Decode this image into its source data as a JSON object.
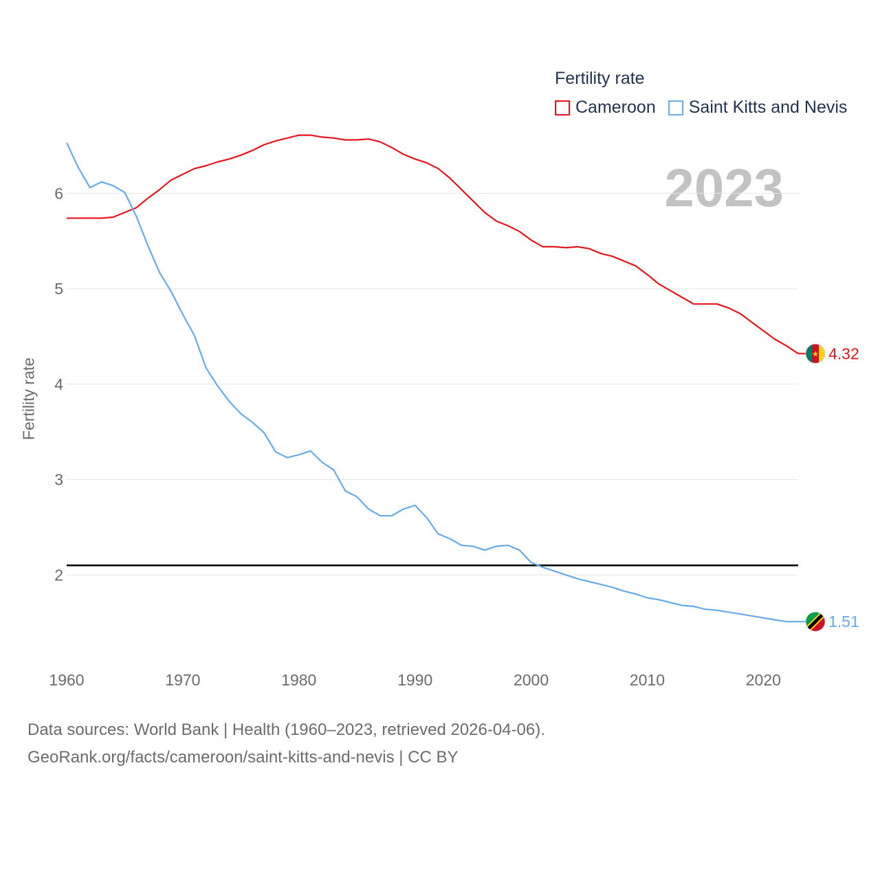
{
  "legend": {
    "title": "Fertility rate",
    "items": [
      {
        "label": "Cameroon",
        "color": "#e8141c"
      },
      {
        "label": "Saint Kitts and Nevis",
        "color": "#66aae8"
      }
    ]
  },
  "year_label": "2023",
  "footer": {
    "line1": "Data sources: World Bank | Health (1960–2023, retrieved 2026-04-06).",
    "line2": "GeoRank.org/facts/cameroon/saint-kitts-and-nevis | CC BY"
  },
  "chart_data": {
    "type": "line",
    "title": "Fertility rate",
    "xlabel": "",
    "ylabel": "Fertility rate",
    "xlim": [
      1960,
      2023
    ],
    "ylim": [
      1.0,
      6.6
    ],
    "x_ticks": [
      1960,
      1970,
      1980,
      1990,
      2000,
      2010,
      2020
    ],
    "y_ticks": [
      2,
      3,
      4,
      5,
      6
    ],
    "grid": true,
    "legend_position": "top-right",
    "reference_line": {
      "y": 2.1,
      "color": "#000000"
    },
    "x": [
      1960,
      1961,
      1962,
      1963,
      1964,
      1965,
      1966,
      1967,
      1968,
      1969,
      1970,
      1971,
      1972,
      1973,
      1974,
      1975,
      1976,
      1977,
      1978,
      1979,
      1980,
      1981,
      1982,
      1983,
      1984,
      1985,
      1986,
      1987,
      1988,
      1989,
      1990,
      1991,
      1992,
      1993,
      1994,
      1995,
      1996,
      1997,
      1998,
      1999,
      2000,
      2001,
      2002,
      2003,
      2004,
      2005,
      2006,
      2007,
      2008,
      2009,
      2010,
      2011,
      2012,
      2013,
      2014,
      2015,
      2016,
      2017,
      2018,
      2019,
      2020,
      2021,
      2022,
      2023
    ],
    "series": [
      {
        "name": "Cameroon",
        "color": "#e8141c",
        "end_label": "4.32",
        "values": [
          5.74,
          5.74,
          5.74,
          5.74,
          5.75,
          5.8,
          5.85,
          5.95,
          6.04,
          6.14,
          6.2,
          6.26,
          6.29,
          6.33,
          6.36,
          6.4,
          6.45,
          6.51,
          6.55,
          6.58,
          6.61,
          6.61,
          6.59,
          6.58,
          6.56,
          6.56,
          6.57,
          6.54,
          6.48,
          6.41,
          6.36,
          6.32,
          6.26,
          6.16,
          6.04,
          5.92,
          5.8,
          5.71,
          5.66,
          5.6,
          5.51,
          5.44,
          5.44,
          5.43,
          5.44,
          5.42,
          5.37,
          5.34,
          5.29,
          5.24,
          5.15,
          5.05,
          4.98,
          4.91,
          4.84,
          4.84,
          4.84,
          4.8,
          4.74,
          4.65,
          4.56,
          4.47,
          4.4,
          4.32
        ]
      },
      {
        "name": "Saint Kitts and Nevis",
        "color": "#66aae8",
        "end_label": "1.51",
        "values": [
          6.53,
          6.27,
          6.06,
          6.12,
          6.08,
          6.01,
          5.76,
          5.45,
          5.17,
          4.97,
          4.73,
          4.51,
          4.17,
          3.98,
          3.82,
          3.69,
          3.6,
          3.49,
          3.29,
          3.23,
          3.26,
          3.3,
          3.18,
          3.1,
          2.88,
          2.82,
          2.69,
          2.62,
          2.62,
          2.69,
          2.73,
          2.6,
          2.43,
          2.38,
          2.31,
          2.3,
          2.26,
          2.3,
          2.31,
          2.26,
          2.13,
          2.08,
          2.04,
          2.0,
          1.96,
          1.93,
          1.9,
          1.87,
          1.83,
          1.8,
          1.76,
          1.74,
          1.71,
          1.68,
          1.67,
          1.64,
          1.63,
          1.61,
          1.59,
          1.57,
          1.55,
          1.53,
          1.51,
          1.51
        ]
      }
    ]
  }
}
